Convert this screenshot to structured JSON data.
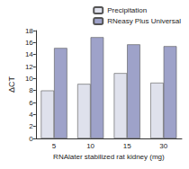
{
  "chart_data": {
    "type": "bar",
    "categories": [
      "5",
      "10",
      "15",
      "30"
    ],
    "x_label": "RNAlater stabilized rat kidney (mg)",
    "y_label": "ΔCT",
    "series": [
      {
        "name": "Precipitation",
        "color": "#dfe1ec",
        "values": [
          8.0,
          9.1,
          10.9,
          9.3
        ]
      },
      {
        "name": "RNeasy Plus Universal",
        "color": "#9ea2c9",
        "values": [
          15.1,
          16.9,
          15.7,
          15.4
        ]
      }
    ],
    "ylim": [
      0,
      18
    ],
    "yticks": [
      0,
      2,
      4,
      6,
      8,
      10,
      12,
      14,
      16,
      18
    ],
    "grid": false,
    "legend": "upper right"
  }
}
